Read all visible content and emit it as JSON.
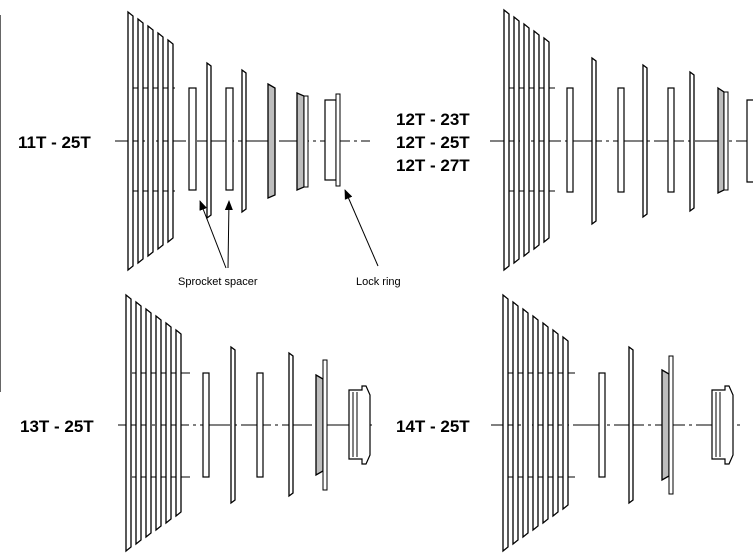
{
  "colors": {
    "line": "#000000",
    "spacer_fill": "#ffffff",
    "sprocket_fill": "#ffffff",
    "shaded_fill": "#bdbdbd"
  },
  "panels": [
    {
      "id": "top-left",
      "labels": [
        "11T - 25T"
      ]
    },
    {
      "id": "top-right",
      "labels": [
        "12T - 23T",
        "12T - 25T",
        "12T - 27T"
      ]
    },
    {
      "id": "bottom-left",
      "labels": [
        "13T - 25T"
      ]
    },
    {
      "id": "bottom-right",
      "labels": [
        "14T - 25T"
      ]
    }
  ],
  "callouts": {
    "sprocket_spacer": "Sprocket spacer",
    "lock_ring": "Lock ring"
  }
}
